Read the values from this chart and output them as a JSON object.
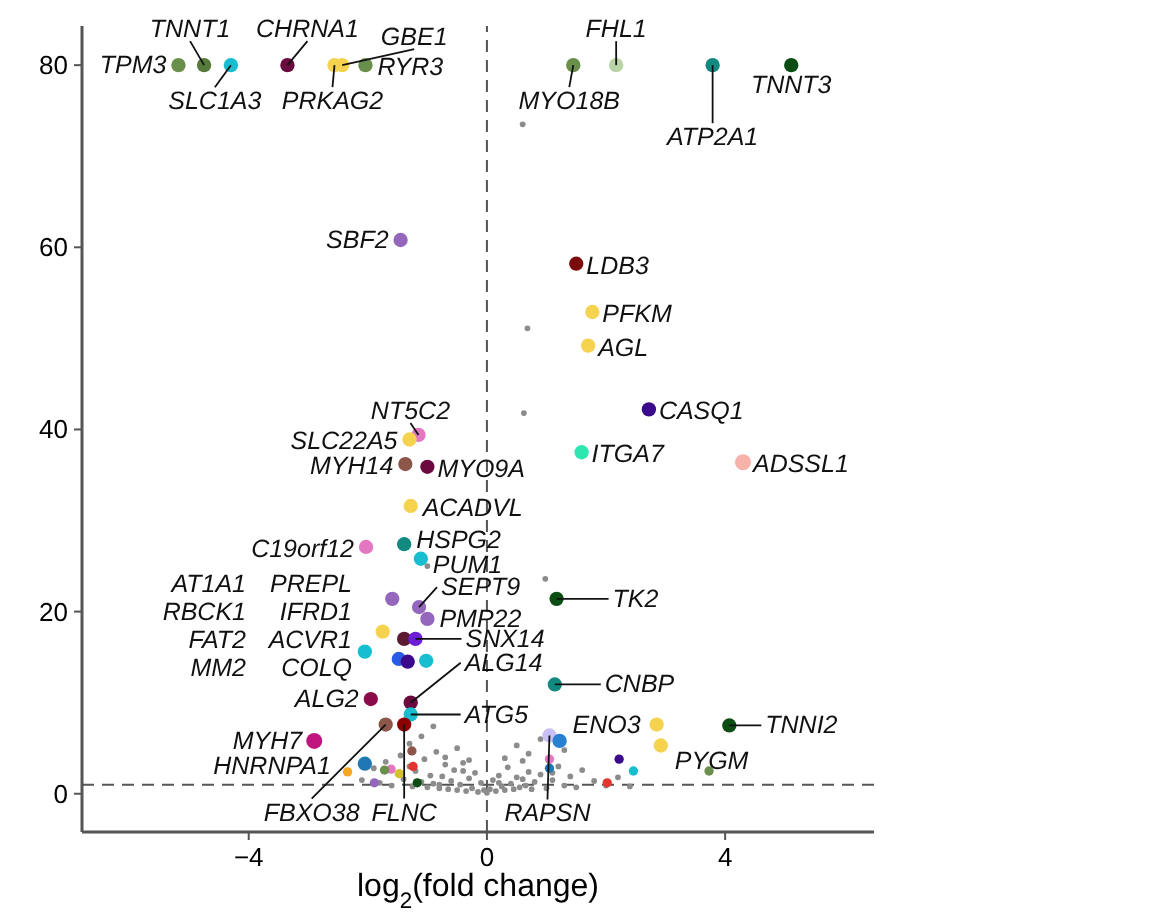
{
  "chart_data": {
    "type": "scatter",
    "xlabel": "log$_{2}$(fold change)",
    "xlim": [
      -6.8,
      6.5
    ],
    "ylim": [
      -4.2,
      84.3
    ],
    "xticks": [
      {
        "value": -4,
        "label": "−4"
      },
      0,
      4
    ],
    "yticks": [
      0,
      20,
      40,
      60,
      80
    ],
    "grid": false,
    "marker": "circle",
    "series": [
      {
        "color": "#8c8c8c",
        "sizes": [
          0.13,
          0.13,
          0.13,
          0.13,
          0.13,
          0.13,
          0.13,
          0.13,
          0.13,
          0.13,
          0.13,
          0.13,
          0.13,
          0.13,
          0.13,
          0.13,
          0.13,
          0.13,
          0.13,
          0.13,
          0.13,
          0.13,
          0.13,
          0.13,
          0.13,
          0.13,
          0.13,
          0.13,
          0.13,
          0.13,
          0.13,
          0.13,
          0.13,
          0.13,
          0.13,
          0.13,
          0.13,
          0.13,
          0.13,
          0.13,
          0.13,
          0.13,
          0.13,
          0.13,
          0.13,
          0.13,
          0.13,
          0.13,
          0.13,
          0.13,
          0.13,
          0.13,
          0.13,
          0.13,
          0.13,
          0.13,
          0.13,
          0.13,
          0.13,
          0.13,
          0.13,
          0.13,
          0.13,
          0.13,
          0.13,
          0.13,
          0.13,
          0.13,
          0.13,
          0.13,
          0.13,
          0.13,
          0.13,
          0.13,
          0.13,
          0.13,
          0.13,
          0.13,
          0.13,
          0.13,
          0.13,
          0.13,
          0.13
        ],
        "x": [
          -2.1,
          -1.9,
          -1.8,
          -1.7,
          -1.6,
          -1.5,
          -1.45,
          -1.4,
          -1.3,
          -1.25,
          -1.2,
          -1.1,
          -1.05,
          -1.0,
          -0.95,
          -0.9,
          -0.85,
          -0.8,
          -0.75,
          -0.7,
          -0.65,
          -0.6,
          -0.55,
          -0.5,
          -0.45,
          -0.4,
          -0.35,
          -0.3,
          -0.25,
          -0.2,
          -0.15,
          -0.1,
          -0.05,
          0.0,
          0.05,
          0.1,
          0.15,
          0.2,
          0.25,
          0.3,
          0.35,
          0.4,
          0.45,
          0.5,
          0.55,
          0.6,
          0.65,
          0.7,
          0.75,
          0.8,
          0.9,
          1.0,
          1.1,
          1.2,
          1.3,
          1.4,
          1.5,
          1.6,
          1.8,
          2.0,
          2.2,
          2.4,
          -1.3,
          -1.1,
          -0.9,
          -0.7,
          -0.5,
          -0.3,
          0.3,
          0.5,
          0.7,
          0.9,
          1.1,
          -0.8,
          -0.4,
          0.2,
          0.6,
          0.98,
          0.6,
          0.68,
          0.62,
          -1.0,
          1.3
        ],
        "values": [
          1.5,
          2.8,
          1.2,
          3.5,
          0.9,
          2.2,
          4.2,
          1.6,
          3.0,
          0.8,
          2.5,
          1.3,
          3.8,
          0.7,
          2.0,
          1.1,
          4.6,
          0.6,
          1.9,
          3.2,
          0.5,
          1.4,
          2.6,
          0.4,
          1.0,
          3.4,
          0.3,
          1.7,
          0.6,
          2.3,
          0.2,
          1.2,
          0.4,
          0.1,
          0.5,
          1.5,
          0.3,
          2.0,
          0.8,
          0.4,
          2.9,
          1.1,
          0.5,
          1.8,
          0.7,
          3.6,
          0.9,
          2.4,
          0.5,
          1.3,
          2.1,
          0.6,
          1.5,
          3.0,
          0.9,
          1.9,
          0.7,
          2.6,
          1.4,
          0.9,
          1.8,
          0.8,
          5.5,
          6.3,
          7.4,
          4.0,
          5.0,
          3.7,
          3.9,
          5.3,
          4.4,
          6.0,
          2.3,
          1.0,
          2.5,
          1.2,
          1.6,
          23.6,
          73.5,
          51.1,
          41.8,
          25.0,
          4.8
        ]
      },
      {
        "sizes": [
          0.34,
          0.34,
          0.34,
          0.34,
          0.34,
          0.34,
          0.34,
          0.34,
          0.34,
          0.34,
          0.34,
          0.34,
          0.34,
          0.34
        ],
        "colors": [
          "#f5a623",
          "#e377c2",
          "#6a8f4a",
          "#d4c22a",
          "#e3342f",
          "#8c564b",
          "#0b4d12",
          "#9467bd",
          "#3b0a8c",
          "#17becf",
          "#6a8f4a",
          "#e3342f",
          "#e377c2",
          "#1f77b4"
        ],
        "x": [
          -2.34,
          -1.61,
          -1.72,
          -1.47,
          -1.24,
          -1.26,
          -1.17,
          -1.89,
          2.22,
          2.46,
          3.73,
          2.02,
          1.05,
          1.05
        ],
        "values": [
          2.4,
          2.7,
          2.6,
          2.2,
          3.0,
          4.7,
          1.2,
          1.2,
          3.8,
          2.5,
          2.5,
          1.2,
          3.8,
          2.8
        ]
      },
      {
        "sizes": [
          0.8,
          0.8,
          0.8,
          0.8,
          0.8,
          0.8,
          0.8,
          0.8,
          0.8,
          0.8,
          0.8,
          0.8,
          0.8,
          0.8,
          0.8,
          0.8,
          0.8,
          1,
          0.8,
          0.8,
          0.8,
          0.8,
          0.8,
          0.8,
          0.8,
          0.8,
          0.8,
          0.8,
          0.8,
          0.8,
          0.8,
          0.8,
          0.8,
          0.8,
          0.8,
          0.8,
          0.8,
          0.8,
          0.8,
          1,
          0.8,
          0.8,
          0.8,
          0.8,
          0.8,
          0.8,
          0.8,
          0.8,
          0.8,
          0.8
        ],
        "colors": [
          "#6a8f4a",
          "#557a3a",
          "#17becf",
          "#6b0a3f",
          "#f5d34f",
          "#f5d34f",
          "#6a8f4a",
          "#6a8f4a",
          "#b9d4a6",
          "#138a80",
          "#0b4d12",
          "#9467bd",
          "#7b0a0a",
          "#f5d34f",
          "#f5d34f",
          "#3b0a8c",
          "#2de6b0",
          "#f7b2aa",
          "#e377c2",
          "#f5d34f",
          "#8c564b",
          "#6b0a3f",
          "#f5d34f",
          "#138a80",
          "#e377c2",
          "#17becf",
          "#17becf",
          "#9467bd",
          "#f5d34f",
          "#5b1a2f",
          "#2a5be6",
          "#3b0a8c",
          "#17becf",
          "#9467bd",
          "#9467bd",
          "#6a1fd6",
          "#6b0a3f",
          "#17becf",
          "#8b0a4a",
          "#c0157f",
          "#1f77b4",
          "#8c564b",
          "#8b0000",
          "#0b4d12",
          "#138a80",
          "#f5d34f",
          "#f5d34f",
          "#0b4d12",
          "#c8c0f5",
          "#2a7fd0"
        ],
        "x": [
          -5.18,
          -4.75,
          -4.3,
          -3.35,
          -2.56,
          -2.43,
          -2.04,
          1.45,
          2.17,
          3.79,
          5.11,
          -1.45,
          1.5,
          1.77,
          1.7,
          2.72,
          1.59,
          4.3,
          -1.15,
          -1.3,
          -1.37,
          -1.0,
          -1.28,
          -1.39,
          -2.03,
          -1.11,
          -2.05,
          -1.59,
          -1.75,
          -1.39,
          -1.48,
          -1.33,
          -1.02,
          -1.14,
          -1.0,
          -1.2,
          -1.28,
          -1.28,
          -1.95,
          -2.9,
          -2.05,
          -1.7,
          -1.39,
          1.17,
          1.14,
          2.85,
          2.92,
          4.07,
          1.05,
          1.22
        ],
        "values": [
          80,
          80,
          80,
          80,
          80,
          80,
          80,
          80,
          80,
          80,
          80,
          60.8,
          58.2,
          52.9,
          49.2,
          42.2,
          37.5,
          36.4,
          39.4,
          38.9,
          36.2,
          35.9,
          31.6,
          27.4,
          27.1,
          25.8,
          15.6,
          21.4,
          17.8,
          17.0,
          14.8,
          14.5,
          14.6,
          20.5,
          19.2,
          17.0,
          10.0,
          8.7,
          10.4,
          5.8,
          3.3,
          7.6,
          7.6,
          21.4,
          12.0,
          7.6,
          5.3,
          7.5,
          6.4,
          5.8
        ]
      }
    ],
    "annotations": [
      {
        "text": "TPM3",
        "x": -5.18,
        "y": 80
      },
      {
        "text": "TNNT1",
        "x": -4.75,
        "y": 80
      },
      {
        "text": "SLC1A3",
        "x": -4.3,
        "y": 80
      },
      {
        "text": "CHRNA1",
        "x": -3.35,
        "y": 80
      },
      {
        "text": "PRKAG2",
        "x": -2.56,
        "y": 80
      },
      {
        "text": "GBE1",
        "x": -2.43,
        "y": 80
      },
      {
        "text": "RYR3",
        "x": -2.04,
        "y": 80
      },
      {
        "text": "MYO18B",
        "x": 1.45,
        "y": 80
      },
      {
        "text": "FHL1",
        "x": 2.17,
        "y": 80
      },
      {
        "text": "ATP2A1",
        "x": 3.79,
        "y": 80
      },
      {
        "text": "TNNT3",
        "x": 5.11,
        "y": 80
      },
      {
        "text": "SBF2",
        "x": -1.45,
        "y": 60.8
      },
      {
        "text": "LDB3",
        "x": 1.5,
        "y": 58.2
      },
      {
        "text": "PFKM",
        "x": 1.77,
        "y": 52.9
      },
      {
        "text": "AGL",
        "x": 1.7,
        "y": 49.2
      },
      {
        "text": "CASQ1",
        "x": 2.72,
        "y": 42.2
      },
      {
        "text": "ITGA7",
        "x": 1.59,
        "y": 37.5
      },
      {
        "text": "ADSSL1",
        "x": 4.3,
        "y": 36.4
      },
      {
        "text": "NT5C2",
        "x": -1.15,
        "y": 39.4
      },
      {
        "text": "SLC22A5",
        "x": -1.3,
        "y": 38.9
      },
      {
        "text": "MYH14",
        "x": -1.37,
        "y": 36.2
      },
      {
        "text": "MYO9A",
        "x": -1.0,
        "y": 35.9
      },
      {
        "text": "ACADVL",
        "x": -1.28,
        "y": 31.6
      },
      {
        "text": "HSPG2",
        "x": -1.39,
        "y": 27.4
      },
      {
        "text": "C19orf12",
        "x": -2.03,
        "y": 27.1
      },
      {
        "text": "PUM1",
        "x": -1.11,
        "y": 25.8
      },
      "AT1A1",
      "PREPL",
      "RBCK1",
      "IFRD1",
      "FAT2",
      "ACVR1",
      "MM2",
      "COLQ",
      {
        "text": "SEPT9",
        "x": -1.14,
        "y": 20.5
      },
      {
        "text": "PMP22",
        "x": -1.0,
        "y": 19.2
      },
      {
        "text": "SNX14",
        "x": -1.2,
        "y": 17.0
      },
      {
        "text": "ALG14",
        "x": -1.28,
        "y": 10.0
      },
      {
        "text": "ATG5",
        "x": -1.28,
        "y": 8.7
      },
      {
        "text": "ALG2",
        "x": -1.95,
        "y": 10.4
      },
      {
        "text": "MYH7",
        "x": -2.9,
        "y": 5.8
      },
      {
        "text": "HNRNPA1",
        "x": -2.05,
        "y": 3.3
      },
      {
        "text": "FBXO38",
        "x": -1.7,
        "y": 7.6
      },
      {
        "text": "FLNC",
        "x": -1.39,
        "y": 7.6
      },
      {
        "text": "TK2",
        "x": 1.17,
        "y": 21.4
      },
      {
        "text": "CNBP",
        "x": 1.14,
        "y": 12.0
      },
      {
        "text": "ENO3",
        "x": 2.85,
        "y": 7.6
      },
      {
        "text": "PYGM",
        "x": 2.92,
        "y": 5.3
      },
      {
        "text": "TNNI2",
        "x": 4.07,
        "y": 7.5
      },
      {
        "text": "RAPSN",
        "x": 1.05,
        "y": 6.4
      }
    ],
    "ref_lines": [
      {
        "axis": "x",
        "value": 0,
        "line_style": "dashed",
        "color": "#555555"
      },
      {
        "axis": "y",
        "value": 1,
        "line_style": "dashed",
        "color": "#555555"
      }
    ]
  }
}
